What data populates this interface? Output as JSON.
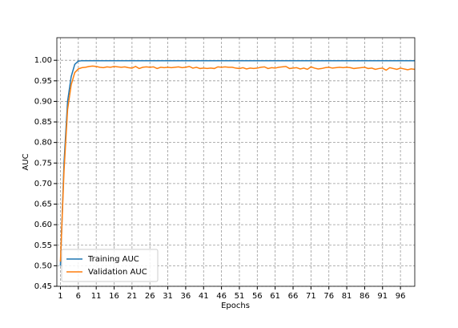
{
  "chart_data": {
    "type": "line",
    "x_label": "Epochs",
    "y_label": "AUC",
    "x": [
      1,
      2,
      3,
      4,
      5,
      6,
      7,
      8,
      9,
      10,
      11,
      12,
      13,
      14,
      15,
      16,
      17,
      18,
      19,
      20,
      21,
      22,
      23,
      24,
      25,
      26,
      27,
      28,
      29,
      30,
      31,
      32,
      33,
      34,
      35,
      36,
      37,
      38,
      39,
      40,
      41,
      42,
      43,
      44,
      45,
      46,
      47,
      48,
      49,
      50,
      51,
      52,
      53,
      54,
      55,
      56,
      57,
      58,
      59,
      60,
      61,
      62,
      63,
      64,
      65,
      66,
      67,
      68,
      69,
      70,
      71,
      72,
      73,
      74,
      75,
      76,
      77,
      78,
      79,
      80,
      81,
      82,
      83,
      84,
      85,
      86,
      87,
      88,
      89,
      90,
      91,
      92,
      93,
      94,
      95,
      96,
      97,
      98,
      99,
      100
    ],
    "series": [
      {
        "name": "Training AUC",
        "color": "#1f77b4",
        "values": [
          0.5,
          0.75,
          0.9,
          0.96,
          0.99,
          0.998,
          0.999,
          0.999,
          0.999,
          0.999,
          0.999,
          0.999,
          0.999,
          0.999,
          0.999,
          0.999,
          0.999,
          0.999,
          0.999,
          0.999,
          0.999,
          0.999,
          0.999,
          0.999,
          0.999,
          0.999,
          0.999,
          0.999,
          0.999,
          0.999,
          0.999,
          0.999,
          0.999,
          0.999,
          0.999,
          0.999,
          0.999,
          0.999,
          0.999,
          0.999,
          0.999,
          0.999,
          0.999,
          0.999,
          0.999,
          0.999,
          0.999,
          0.999,
          0.999,
          0.999,
          0.999,
          0.999,
          0.999,
          0.999,
          0.999,
          0.999,
          0.999,
          0.999,
          0.999,
          0.999,
          0.999,
          0.999,
          0.999,
          0.999,
          0.999,
          0.999,
          0.999,
          0.999,
          0.999,
          0.999,
          0.999,
          0.999,
          0.999,
          0.999,
          0.999,
          0.999,
          0.999,
          0.999,
          0.999,
          0.999,
          0.999,
          0.999,
          0.999,
          0.999,
          0.999,
          0.999,
          0.999,
          0.999,
          0.999,
          0.999,
          0.999,
          0.999,
          0.999,
          0.999,
          0.999,
          0.999,
          0.999,
          0.999,
          0.999,
          0.999
        ]
      },
      {
        "name": "Validation AUC",
        "color": "#ff7f0e",
        "values": [
          0.51,
          0.73,
          0.88,
          0.94,
          0.97,
          0.979,
          0.982,
          0.983,
          0.985,
          0.986,
          0.985,
          0.983,
          0.982,
          0.984,
          0.983,
          0.985,
          0.984,
          0.983,
          0.984,
          0.982,
          0.981,
          0.985,
          0.98,
          0.983,
          0.984,
          0.983,
          0.984,
          0.98,
          0.983,
          0.982,
          0.983,
          0.982,
          0.983,
          0.984,
          0.982,
          0.983,
          0.985,
          0.981,
          0.983,
          0.98,
          0.981,
          0.98,
          0.981,
          0.98,
          0.984,
          0.983,
          0.984,
          0.983,
          0.983,
          0.981,
          0.98,
          0.982,
          0.979,
          0.981,
          0.98,
          0.981,
          0.983,
          0.984,
          0.98,
          0.982,
          0.981,
          0.983,
          0.984,
          0.985,
          0.98,
          0.981,
          0.982,
          0.979,
          0.981,
          0.978,
          0.984,
          0.981,
          0.979,
          0.98,
          0.982,
          0.983,
          0.981,
          0.982,
          0.983,
          0.982,
          0.983,
          0.982,
          0.98,
          0.981,
          0.982,
          0.983,
          0.98,
          0.981,
          0.978,
          0.98,
          0.981,
          0.976,
          0.982,
          0.98,
          0.978,
          0.981,
          0.979,
          0.977,
          0.979,
          0.978
        ]
      }
    ],
    "xlim": [
      0,
      100
    ],
    "xticks": [
      1,
      6,
      11,
      16,
      21,
      26,
      31,
      36,
      41,
      46,
      51,
      56,
      61,
      66,
      71,
      76,
      81,
      86,
      91,
      96
    ],
    "ylim": [
      0.45,
      1.055
    ],
    "yticks": [
      0.45,
      {
        "value": 0.5,
        "label": "0.50"
      },
      0.55,
      {
        "value": 0.6,
        "label": "0.60"
      },
      0.65,
      {
        "value": 0.7,
        "label": "0.70"
      },
      0.75,
      {
        "value": 0.8,
        "label": "0.80"
      },
      0.85,
      {
        "value": 0.9,
        "label": "0.90"
      },
      0.95,
      {
        "value": 1.0,
        "label": "1.00"
      }
    ],
    "grid": true,
    "legend": "lower left"
  }
}
